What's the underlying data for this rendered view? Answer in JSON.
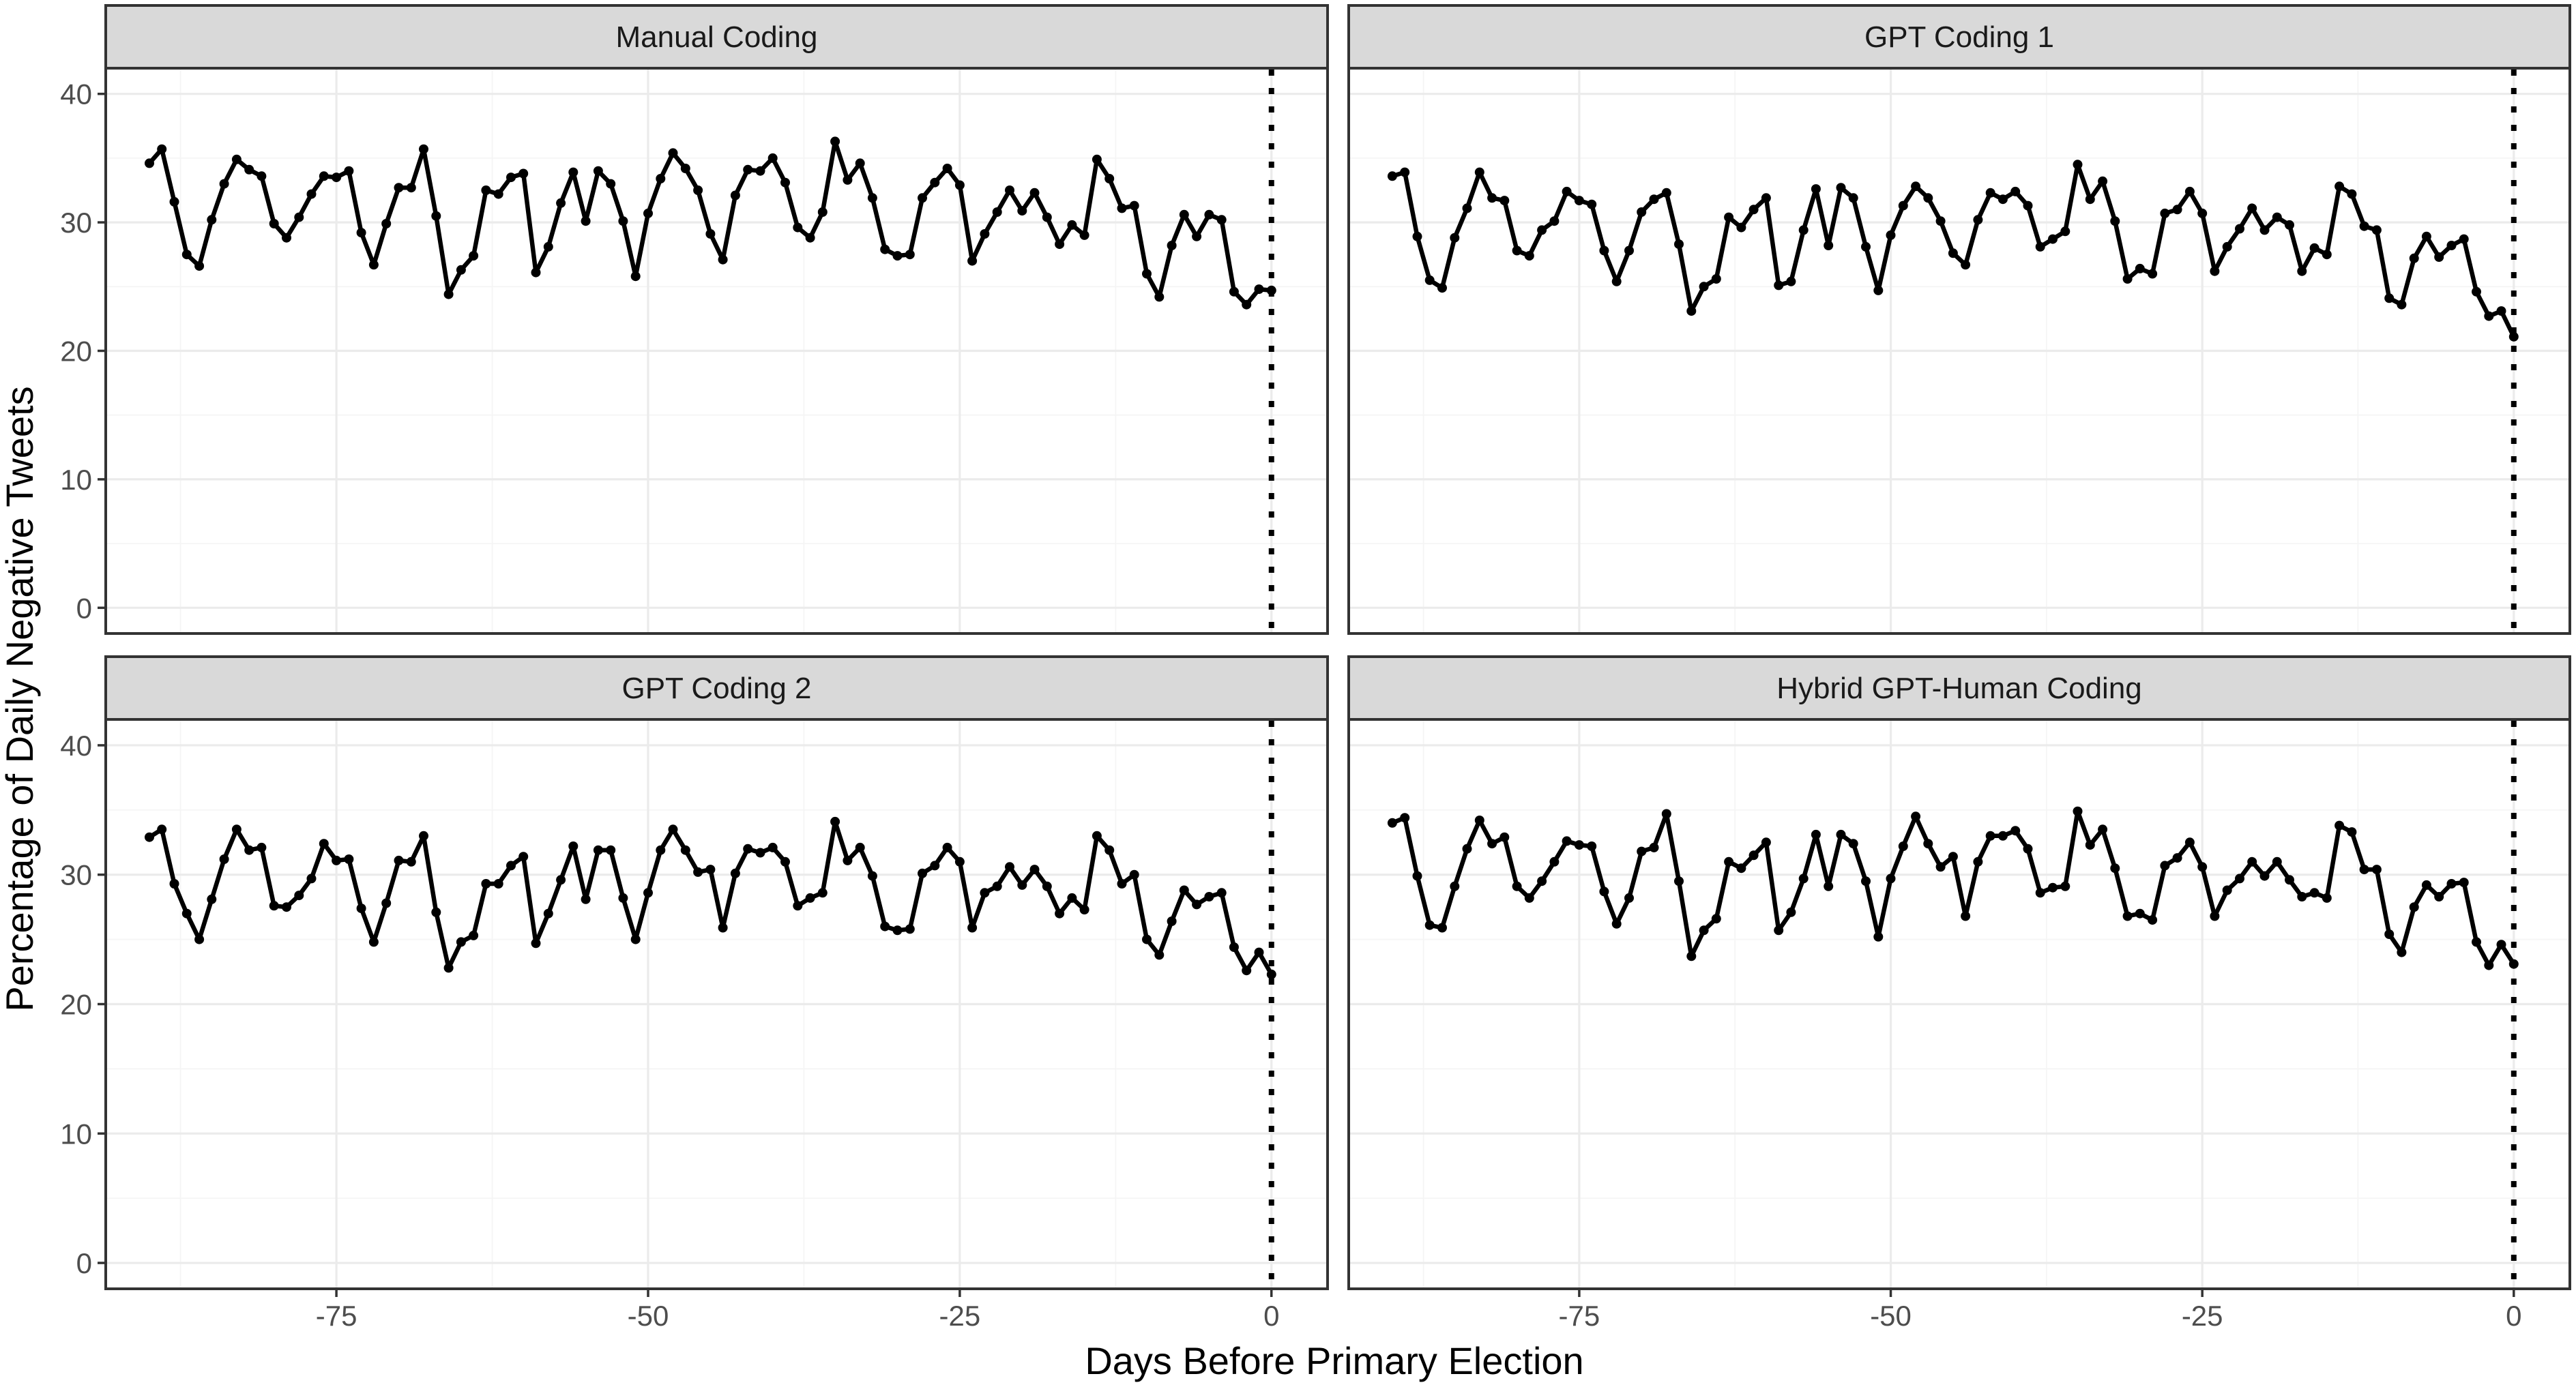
{
  "chart_data": {
    "type": "line",
    "facet_layout": "2x2",
    "xlabel": "Days Before Primary Election",
    "ylabel": "Percentage of Daily Negative Tweets",
    "xlim": [
      -90,
      0
    ],
    "ylim": [
      0,
      40
    ],
    "x_ticks": [
      -75,
      -50,
      -25,
      0
    ],
    "x_tick_labels": [
      "-75",
      "-50",
      "-25",
      "0"
    ],
    "y_ticks": [
      0,
      10,
      20,
      30,
      40
    ],
    "y_tick_labels": [
      "0",
      "10",
      "20",
      "30",
      "40"
    ],
    "grid": true,
    "legend": "none",
    "reference_line": {
      "x": 0,
      "style": "dotted",
      "color": "#000000"
    },
    "line_color": "#000000",
    "x": [
      -90,
      -89,
      -88,
      -87,
      -86,
      -85,
      -84,
      -83,
      -82,
      -81,
      -80,
      -79,
      -78,
      -77,
      -76,
      -75,
      -74,
      -73,
      -72,
      -71,
      -70,
      -69,
      -68,
      -67,
      -66,
      -65,
      -64,
      -63,
      -62,
      -61,
      -60,
      -59,
      -58,
      -57,
      -56,
      -55,
      -54,
      -53,
      -52,
      -51,
      -50,
      -49,
      -48,
      -47,
      -46,
      -45,
      -44,
      -43,
      -42,
      -41,
      -40,
      -39,
      -38,
      -37,
      -36,
      -35,
      -34,
      -33,
      -32,
      -31,
      -30,
      -29,
      -28,
      -27,
      -26,
      -25,
      -24,
      -23,
      -22,
      -21,
      -20,
      -19,
      -18,
      -17,
      -16,
      -15,
      -14,
      -13,
      -12,
      -11,
      -10,
      -9,
      -8,
      -7,
      -6,
      -5,
      -4,
      -3,
      -2,
      -1,
      0
    ],
    "series": [
      {
        "name": "Manual Coding",
        "values": [
          34.6,
          35.7,
          31.6,
          27.5,
          26.6,
          30.2,
          33.0,
          34.9,
          34.1,
          33.6,
          29.9,
          28.8,
          30.4,
          32.2,
          33.6,
          33.5,
          34.0,
          29.2,
          26.7,
          29.9,
          32.7,
          32.7,
          35.7,
          30.5,
          24.4,
          26.3,
          27.4,
          32.5,
          32.2,
          33.5,
          33.8,
          26.1,
          28.1,
          31.5,
          33.9,
          30.1,
          34.0,
          33.0,
          30.1,
          25.8,
          30.7,
          33.4,
          35.4,
          34.2,
          32.5,
          29.1,
          27.1,
          32.1,
          34.1,
          34.0,
          35.0,
          33.1,
          29.6,
          28.8,
          30.8,
          36.3,
          33.3,
          34.6,
          31.9,
          27.9,
          27.4,
          27.5,
          31.9,
          33.1,
          34.2,
          32.9,
          27.0,
          29.1,
          30.8,
          32.5,
          30.9,
          32.3,
          30.4,
          28.3,
          29.8,
          29.0,
          34.9,
          33.4,
          31.1,
          31.3,
          26.0,
          24.2,
          28.2,
          30.6,
          28.9,
          30.6,
          30.2,
          24.6,
          23.6,
          24.8,
          24.7
        ]
      },
      {
        "name": "GPT Coding 1",
        "values": [
          33.6,
          33.9,
          28.9,
          25.5,
          24.9,
          28.8,
          31.1,
          33.9,
          31.9,
          31.7,
          27.8,
          27.4,
          29.4,
          30.1,
          32.4,
          31.7,
          31.4,
          27.8,
          25.4,
          27.8,
          30.8,
          31.8,
          32.3,
          28.3,
          23.1,
          25.0,
          25.6,
          30.4,
          29.6,
          31.0,
          31.9,
          25.1,
          25.4,
          29.4,
          32.6,
          28.2,
          32.7,
          31.9,
          28.1,
          24.7,
          29.0,
          31.3,
          32.8,
          31.9,
          30.1,
          27.6,
          26.7,
          30.2,
          32.3,
          31.8,
          32.4,
          31.3,
          28.1,
          28.7,
          29.3,
          34.5,
          31.8,
          33.2,
          30.1,
          25.6,
          26.4,
          26.0,
          30.7,
          31.0,
          32.4,
          30.7,
          26.2,
          28.1,
          29.5,
          31.1,
          29.4,
          30.4,
          29.8,
          26.2,
          28.0,
          27.5,
          32.8,
          32.2,
          29.7,
          29.4,
          24.1,
          23.6,
          27.2,
          28.9,
          27.3,
          28.2,
          28.7,
          24.6,
          22.7,
          23.1,
          21.1
        ]
      },
      {
        "name": "GPT Coding 2",
        "values": [
          32.9,
          33.5,
          29.3,
          27.0,
          25.0,
          28.1,
          31.2,
          33.5,
          31.9,
          32.1,
          27.6,
          27.5,
          28.4,
          29.7,
          32.4,
          31.1,
          31.2,
          27.4,
          24.8,
          27.8,
          31.1,
          31.0,
          33.0,
          27.1,
          22.8,
          24.8,
          25.3,
          29.3,
          29.3,
          30.7,
          31.4,
          24.7,
          27.0,
          29.6,
          32.2,
          28.1,
          31.9,
          31.9,
          28.2,
          25.0,
          28.6,
          31.9,
          33.5,
          31.9,
          30.2,
          30.4,
          25.9,
          30.1,
          32.0,
          31.7,
          32.1,
          31.0,
          27.6,
          28.2,
          28.6,
          34.1,
          31.1,
          32.1,
          29.9,
          26.0,
          25.7,
          25.8,
          30.1,
          30.7,
          32.1,
          31.0,
          25.9,
          28.6,
          29.1,
          30.6,
          29.2,
          30.4,
          29.1,
          27.0,
          28.2,
          27.3,
          33.0,
          31.9,
          29.3,
          30.0,
          25.0,
          23.8,
          26.4,
          28.8,
          27.7,
          28.3,
          28.6,
          24.4,
          22.6,
          24.0,
          22.3
        ]
      },
      {
        "name": "Hybrid GPT-Human Coding",
        "values": [
          34.0,
          34.4,
          29.9,
          26.1,
          25.9,
          29.1,
          32.0,
          34.2,
          32.4,
          32.9,
          29.1,
          28.2,
          29.5,
          31.0,
          32.6,
          32.3,
          32.2,
          28.7,
          26.2,
          28.2,
          31.8,
          32.1,
          34.7,
          29.5,
          23.7,
          25.7,
          26.6,
          31.0,
          30.5,
          31.5,
          32.5,
          25.7,
          27.1,
          29.7,
          33.1,
          29.1,
          33.1,
          32.4,
          29.5,
          25.2,
          29.7,
          32.2,
          34.5,
          32.4,
          30.6,
          31.4,
          26.8,
          31.0,
          33.0,
          33.0,
          33.4,
          32.0,
          28.6,
          29.0,
          29.1,
          34.9,
          32.3,
          33.5,
          30.5,
          26.8,
          27.0,
          26.5,
          30.7,
          31.3,
          32.5,
          30.6,
          26.8,
          28.8,
          29.7,
          31.0,
          29.9,
          31.0,
          29.6,
          28.3,
          28.6,
          28.2,
          33.8,
          33.3,
          30.4,
          30.4,
          25.4,
          24.0,
          27.5,
          29.2,
          28.3,
          29.3,
          29.4,
          24.8,
          23.0,
          24.6,
          23.1
        ]
      }
    ]
  }
}
